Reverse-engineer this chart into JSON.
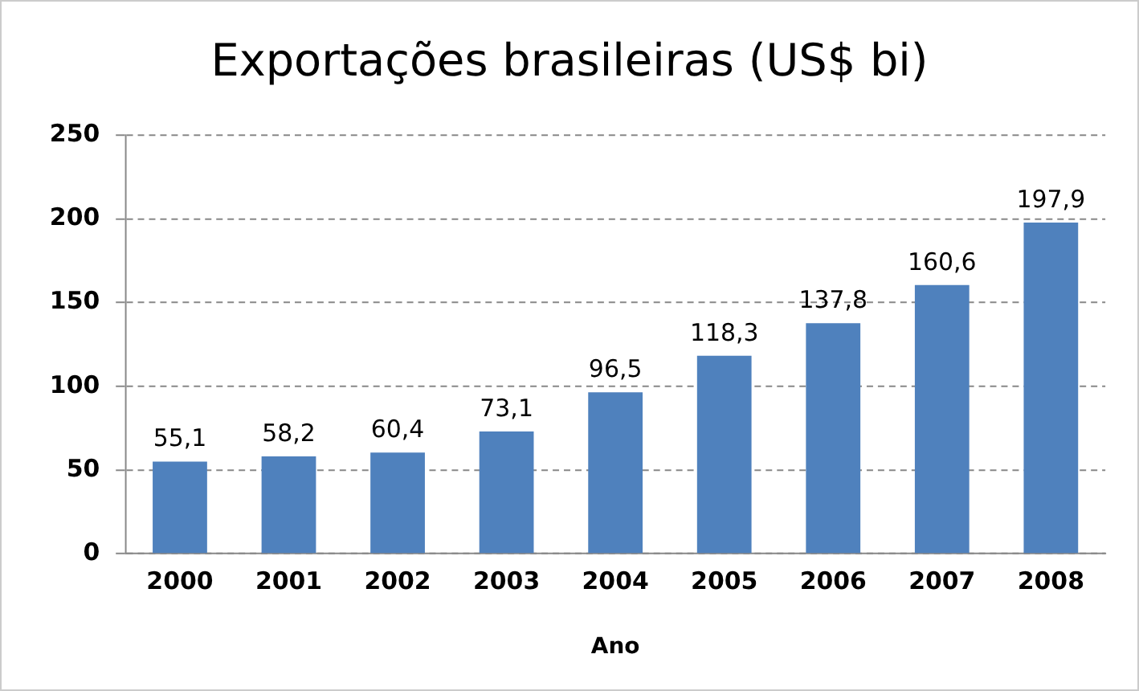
{
  "chart_data": {
    "type": "bar",
    "title": "Exportações brasileiras (US$ bi)",
    "xlabel": "Ano",
    "categories": [
      "2000",
      "2001",
      "2002",
      "2003",
      "2004",
      "2005",
      "2006",
      "2007",
      "2008"
    ],
    "values": [
      55.1,
      58.2,
      60.4,
      73.1,
      96.5,
      118.3,
      137.8,
      160.6,
      197.9
    ],
    "value_labels": [
      "55,1",
      "58,2",
      "60,4",
      "73,1",
      "96,5",
      "118,3",
      "137,8",
      "160,6",
      "197,9"
    ],
    "color": "#4f81bd",
    "ylim": [
      0,
      250
    ],
    "yticks": [
      0,
      50,
      100,
      150,
      200,
      250
    ],
    "grid": "y",
    "legend": false
  }
}
